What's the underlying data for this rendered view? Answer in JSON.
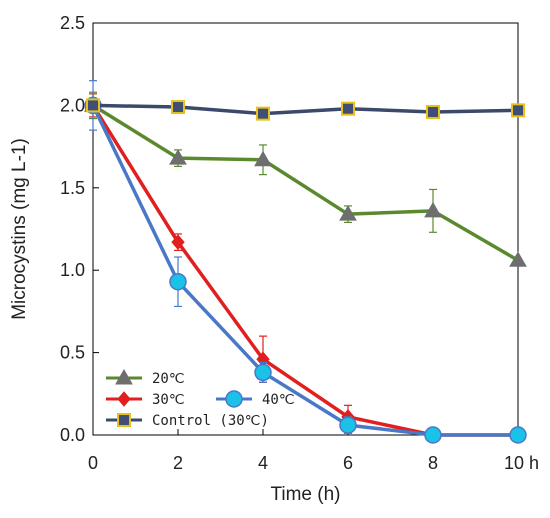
{
  "chart_data": {
    "type": "line",
    "xlabel": "Time (h)",
    "ylabel": "Microcystins (mg L-1)",
    "xlim": [
      0,
      10
    ],
    "ylim": [
      0,
      2.5
    ],
    "xticks": [
      0,
      2,
      4,
      6,
      8,
      10
    ],
    "xtick_labels": [
      "0",
      "2",
      "4",
      "6",
      "8",
      "10 h"
    ],
    "yticks": [
      0,
      0.5,
      1.0,
      1.5,
      2.0,
      2.5
    ],
    "ytick_labels": [
      "0.0",
      "0.5",
      "1.0",
      "1.5",
      "2.0",
      "2.5"
    ],
    "grid": false,
    "legend_position": "bottom-left",
    "series": [
      {
        "name": "20℃",
        "marker": "triangle",
        "line_color": "#5b8a2e",
        "marker_fill": "#6e6e6e",
        "x": [
          0,
          2,
          4,
          6,
          8,
          10
        ],
        "y": [
          2.0,
          1.68,
          1.67,
          1.34,
          1.36,
          1.06
        ],
        "err": [
          0.08,
          0.05,
          0.09,
          0.05,
          0.13,
          0.0
        ]
      },
      {
        "name": "30℃",
        "marker": "diamond",
        "line_color": "#e21f1f",
        "marker_fill": "#e21f1f",
        "x": [
          0,
          2,
          4,
          6,
          8,
          10
        ],
        "y": [
          2.0,
          1.17,
          0.46,
          0.11,
          0.0,
          0.0
        ],
        "err": [
          0.07,
          0.05,
          0.14,
          0.07,
          0.0,
          0.0
        ]
      },
      {
        "name": "40℃",
        "marker": "circle",
        "line_color": "#4a78c8",
        "marker_fill": "#19c2e6",
        "x": [
          0,
          2,
          4,
          6,
          8,
          10
        ],
        "y": [
          2.0,
          0.93,
          0.38,
          0.06,
          0.0,
          0.0
        ],
        "err": [
          0.15,
          0.15,
          0.06,
          0.05,
          0.0,
          0.0
        ]
      },
      {
        "name": "Control (30℃)",
        "marker": "square",
        "line_color": "#3b4a6b",
        "marker_fill": "#3f4f75",
        "marker_edge": "#e8c21a",
        "x": [
          0,
          2,
          4,
          6,
          8,
          10
        ],
        "y": [
          2.0,
          1.99,
          1.95,
          1.98,
          1.96,
          1.97
        ],
        "err": [
          0,
          0,
          0,
          0,
          0,
          0
        ]
      }
    ]
  }
}
